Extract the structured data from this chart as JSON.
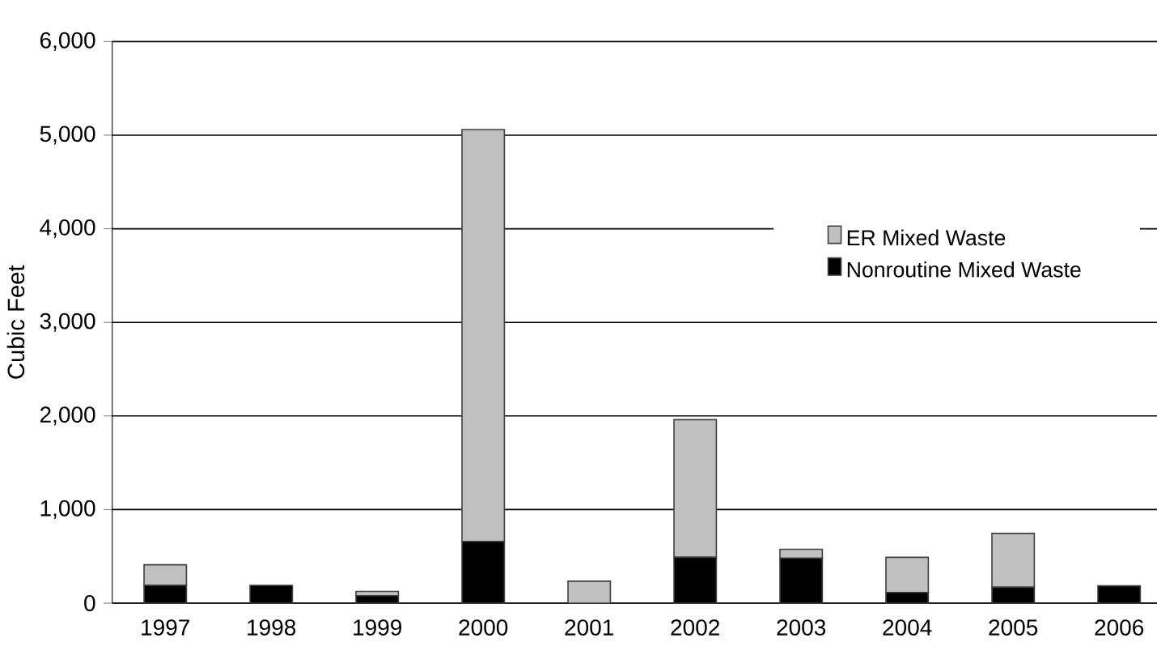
{
  "chart_data": {
    "type": "bar",
    "stacked": true,
    "ylabel": "Cubic Feet",
    "categories": [
      "1997",
      "1998",
      "1999",
      "2000",
      "2001",
      "2002",
      "2003",
      "2004",
      "2005",
      "2006"
    ],
    "series": [
      {
        "name": "Nonroutine Mixed Waste",
        "color": "#000000",
        "values": [
          190,
          190,
          80,
          660,
          0,
          490,
          480,
          115,
          170,
          185
        ]
      },
      {
        "name": "ER Mixed Waste",
        "color": "#c0c0c0",
        "values": [
          220,
          0,
          45,
          4400,
          235,
          1470,
          95,
          375,
          575,
          0
        ]
      }
    ],
    "ylim": [
      0,
      6000
    ],
    "yticks": [
      {
        "value": 0,
        "label": "0"
      },
      {
        "value": 1000,
        "label": "1,000"
      },
      {
        "value": 2000,
        "label": "2,000"
      },
      {
        "value": 3000,
        "label": "3,000"
      },
      {
        "value": 4000,
        "label": "4,000"
      },
      {
        "value": 5000,
        "label": "5,000"
      },
      {
        "value": 6000,
        "label": "6,000"
      }
    ],
    "grid": "y",
    "legend": "right"
  }
}
